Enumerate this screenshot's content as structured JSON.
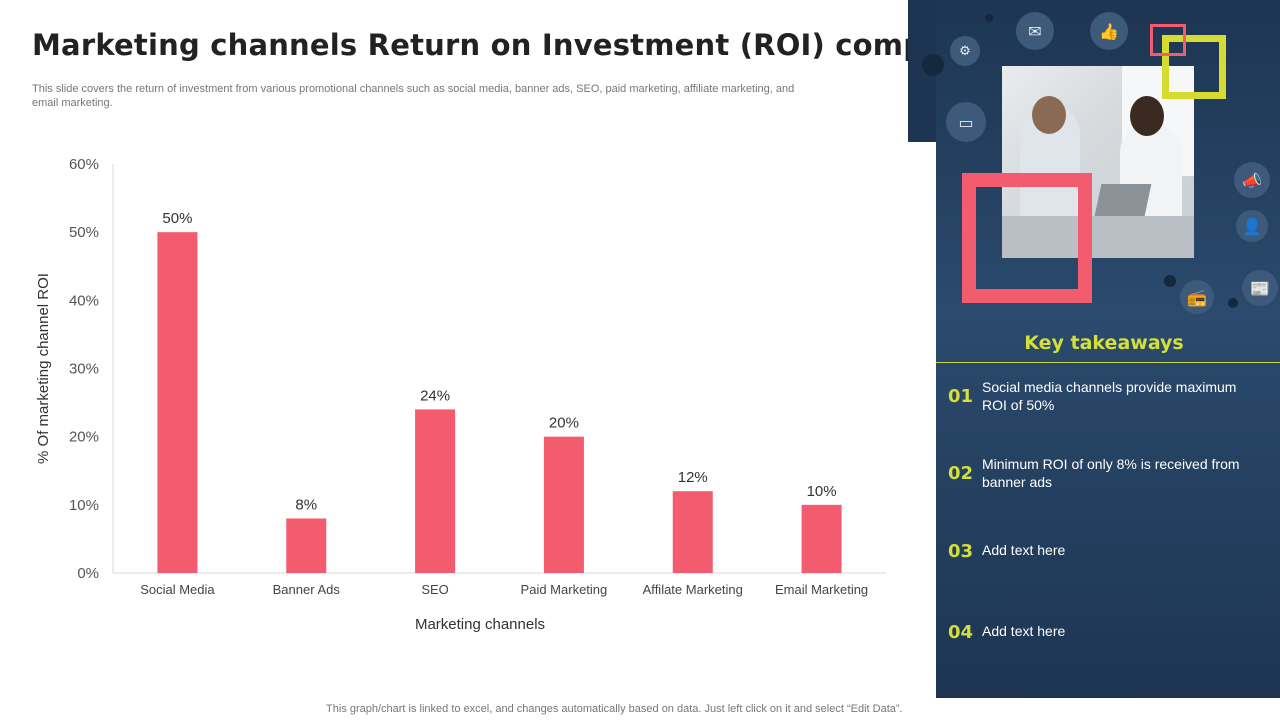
{
  "title": "Marketing channels Return on Investment (ROI) comparison",
  "subtitle": "This slide covers the return of investment from various promotional channels such as social media, banner ads, SEO, paid marketing, affiliate marketing, and email marketing.",
  "footnote": "This graph/chart is linked to excel, and changes automatically based on data. Just left click on it and select “Edit Data”.",
  "colors": {
    "bar": "#f25c6e",
    "panel": "#1d3552",
    "accent_yellow": "#d4df3a",
    "accent_pink": "#f25c6e"
  },
  "chart_data": {
    "type": "bar",
    "title": "",
    "categories": [
      "Social Media",
      "Banner Ads",
      "SEO",
      "Paid Marketing",
      "Affilate Marketing",
      "Email Marketing"
    ],
    "values": [
      50,
      8,
      24,
      20,
      12,
      10
    ],
    "data_labels": [
      "50%",
      "8%",
      "24%",
      "20%",
      "12%",
      "10%"
    ],
    "xlabel": "Marketing channels",
    "ylabel": "% Of marketing channel ROI",
    "ylim": [
      0,
      60
    ],
    "yticks": [
      0,
      10,
      20,
      30,
      40,
      50,
      60
    ],
    "ytick_labels": [
      "0%",
      "10%",
      "20%",
      "30%",
      "40%",
      "50%",
      "60%"
    ],
    "grid": false,
    "legend": "none"
  },
  "panel": {
    "icons": [
      "email-icon",
      "thumbs-up-icon",
      "network-icon",
      "monitor-icon",
      "megaphone-icon",
      "user-icon",
      "radio-icon",
      "newspaper-icon"
    ],
    "key_takeaways_title": "Key takeaways",
    "takeaways": [
      {
        "num": "01",
        "text": "Social media channels provide maximum ROI of 50%"
      },
      {
        "num": "02",
        "text": "Minimum ROI of only 8% is received from banner ads"
      },
      {
        "num": "03",
        "text": "Add text here"
      },
      {
        "num": "04",
        "text": "Add text here"
      }
    ]
  }
}
